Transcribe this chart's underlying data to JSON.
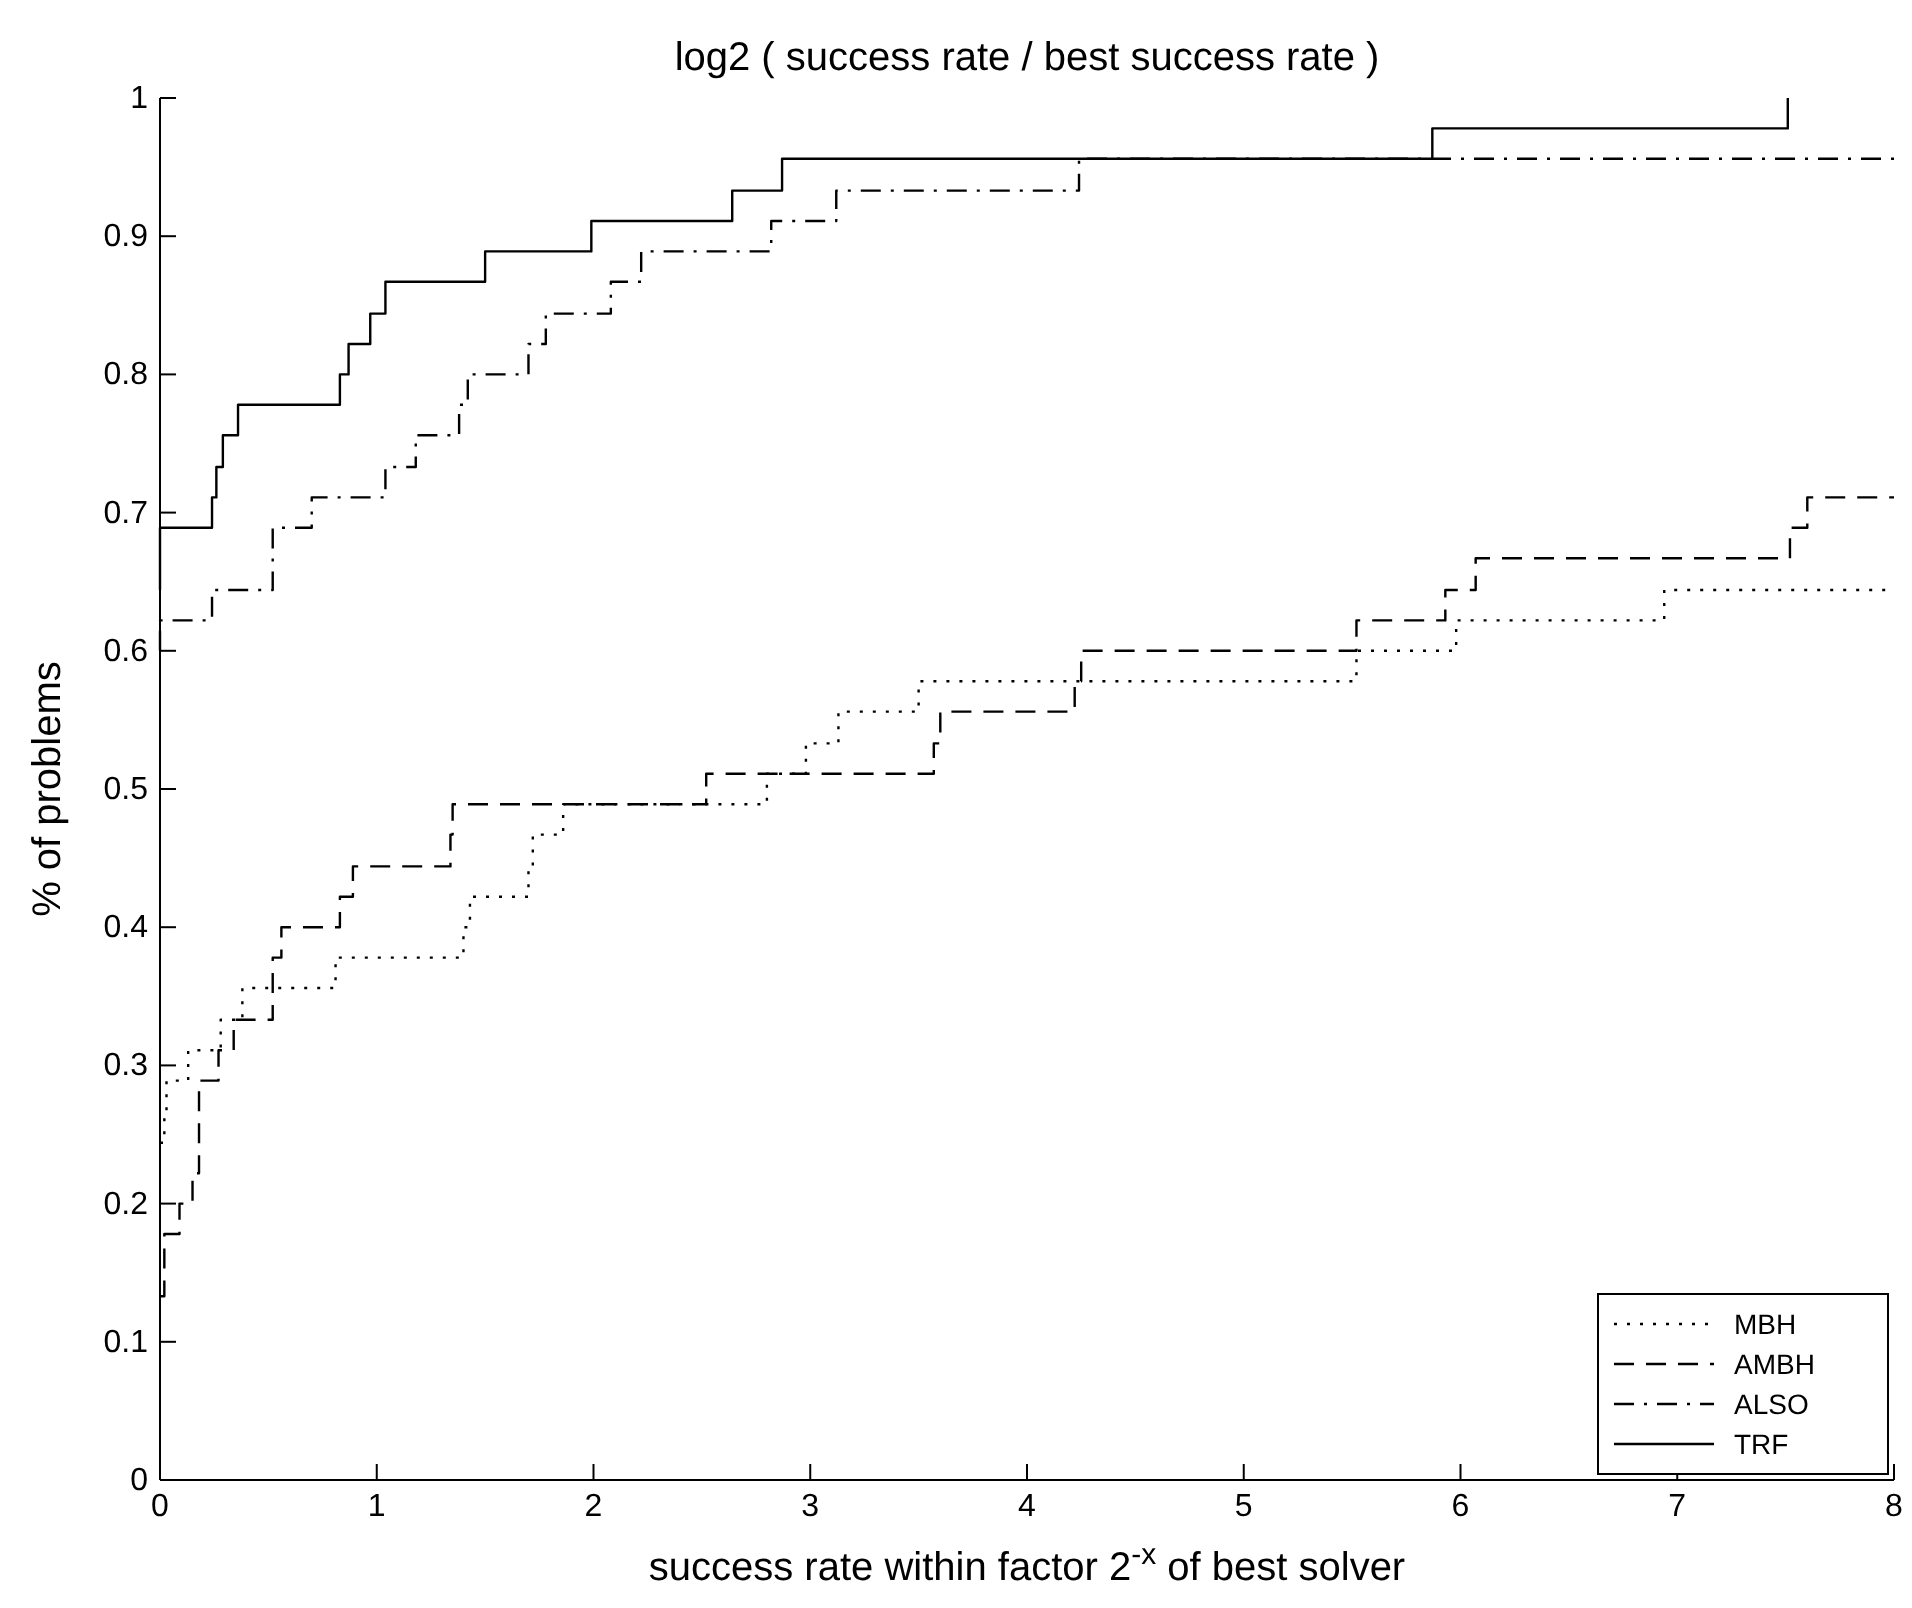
{
  "chart_data": {
    "type": "step",
    "title": "log2 ( success rate / best success rate )",
    "xlabel": "success rate within factor 2$^{-x}$ of best solver",
    "ylabel": "% of problems",
    "xlim": [
      0,
      8
    ],
    "xticks": [
      0,
      1,
      2,
      3,
      4,
      5,
      6,
      7,
      8
    ],
    "ylim": [
      0,
      1
    ],
    "yticks": [
      0,
      0.1,
      0.2,
      0.3,
      0.4,
      0.5,
      0.6,
      0.7,
      0.8,
      0.9,
      1
    ],
    "grid": false,
    "legend": "bottom right",
    "series": [
      {
        "name": "MBH",
        "color": "#000000",
        "line_style": "dotted",
        "x": [
          0,
          0.02,
          0.03,
          0.13,
          0.28,
          0.38,
          0.81,
          1.4,
          1.43,
          1.7,
          1.72,
          1.86,
          2.8,
          2.98,
          3.13,
          3.5,
          5.52,
          5.98,
          6.94,
          8
        ],
        "values": [
          0.244,
          0.267,
          0.289,
          0.311,
          0.333,
          0.356,
          0.378,
          0.4,
          0.422,
          0.444,
          0.467,
          0.489,
          0.511,
          0.533,
          0.556,
          0.578,
          0.6,
          0.622,
          0.644,
          0.644
        ]
      },
      {
        "name": "AMBH",
        "color": "#000000",
        "line_style": "dashed",
        "x": [
          0,
          0.02,
          0.09,
          0.15,
          0.18,
          0.27,
          0.34,
          0.52,
          0.56,
          0.83,
          0.89,
          1.34,
          1.35,
          2.52,
          3.57,
          3.6,
          4.22,
          4.25,
          5.52,
          5.93,
          6.07,
          7.52,
          7.6,
          8
        ],
        "values": [
          0.133,
          0.178,
          0.2,
          0.222,
          0.289,
          0.311,
          0.333,
          0.378,
          0.4,
          0.422,
          0.444,
          0.467,
          0.489,
          0.511,
          0.533,
          0.556,
          0.578,
          0.6,
          0.622,
          0.644,
          0.667,
          0.689,
          0.711,
          0.711
        ]
      },
      {
        "name": "ALSO",
        "color": "#000000",
        "line_style": "dashdot",
        "x": [
          0,
          0,
          0.24,
          0.52,
          0.7,
          1.04,
          1.18,
          1.38,
          1.42,
          1.7,
          1.78,
          2.08,
          2.22,
          2.82,
          3.12,
          4.24,
          8
        ],
        "values": [
          0.6,
          0.622,
          0.644,
          0.689,
          0.711,
          0.733,
          0.756,
          0.778,
          0.8,
          0.822,
          0.844,
          0.867,
          0.889,
          0.911,
          0.933,
          0.956,
          0.956
        ]
      },
      {
        "name": "TRF",
        "color": "#000000",
        "line_style": "solid",
        "x": [
          0,
          0,
          0.24,
          0.26,
          0.29,
          0.36,
          0.83,
          0.87,
          0.97,
          1.04,
          1.5,
          1.99,
          2.64,
          2.87,
          5.87,
          7.51
        ],
        "values": [
          0.644,
          0.689,
          0.711,
          0.733,
          0.756,
          0.778,
          0.8,
          0.822,
          0.844,
          0.867,
          0.889,
          0.911,
          0.933,
          0.956,
          0.978,
          1.0
        ]
      }
    ]
  }
}
